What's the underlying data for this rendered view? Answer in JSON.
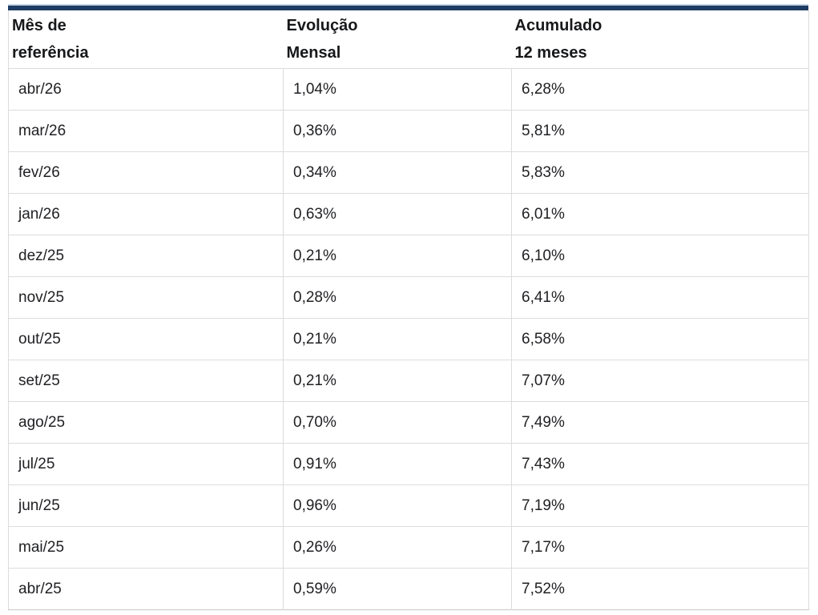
{
  "colors": {
    "accent_navy": "#1e3c64",
    "accent_light_blue": "#c7d5e4",
    "row_border": "#dcdcdc",
    "bottom_border": "#c6c6c6",
    "text": "#202124",
    "header_text": "#17181a",
    "background": "#ffffff"
  },
  "table": {
    "columns": [
      {
        "label_line1": "Mês de",
        "label_line2": "referência"
      },
      {
        "label_line1": "Evolução",
        "label_line2": "Mensal"
      },
      {
        "label_line1": "Acumulado",
        "label_line2": "12 meses"
      }
    ],
    "rows": [
      {
        "month": "abr/26",
        "monthly": "1,04%",
        "accumulated": "6,28%"
      },
      {
        "month": "mar/26",
        "monthly": "0,36%",
        "accumulated": "5,81%"
      },
      {
        "month": "fev/26",
        "monthly": "0,34%",
        "accumulated": "5,83%"
      },
      {
        "month": "jan/26",
        "monthly": "0,63%",
        "accumulated": "6,01%"
      },
      {
        "month": "dez/25",
        "monthly": "0,21%",
        "accumulated": "6,10%"
      },
      {
        "month": "nov/25",
        "monthly": "0,28%",
        "accumulated": "6,41%"
      },
      {
        "month": "out/25",
        "monthly": "0,21%",
        "accumulated": "6,58%"
      },
      {
        "month": "set/25",
        "monthly": "0,21%",
        "accumulated": "7,07%"
      },
      {
        "month": "ago/25",
        "monthly": "0,70%",
        "accumulated": "7,49%"
      },
      {
        "month": "jul/25",
        "monthly": "0,91%",
        "accumulated": "7,43%"
      },
      {
        "month": "jun/25",
        "monthly": "0,96%",
        "accumulated": "7,19%"
      },
      {
        "month": "mai/25",
        "monthly": "0,26%",
        "accumulated": "7,17%"
      },
      {
        "month": "abr/25",
        "monthly": "0,59%",
        "accumulated": "7,52%"
      }
    ]
  },
  "chart_data": {
    "type": "table",
    "title": "",
    "columns": [
      "Mês de referência",
      "Evolução Mensal",
      "Acumulado 12 meses"
    ],
    "categories": [
      "abr/26",
      "mar/26",
      "fev/26",
      "jan/26",
      "dez/25",
      "nov/25",
      "out/25",
      "set/25",
      "ago/25",
      "jul/25",
      "jun/25",
      "mai/25",
      "abr/25"
    ],
    "series": [
      {
        "name": "Evolução Mensal (%)",
        "values": [
          1.04,
          0.36,
          0.34,
          0.63,
          0.21,
          0.28,
          0.21,
          0.21,
          0.7,
          0.91,
          0.96,
          0.26,
          0.59
        ]
      },
      {
        "name": "Acumulado 12 meses (%)",
        "values": [
          6.28,
          5.81,
          5.83,
          6.01,
          6.1,
          6.41,
          6.58,
          7.07,
          7.49,
          7.43,
          7.19,
          7.17,
          7.52
        ]
      }
    ]
  }
}
